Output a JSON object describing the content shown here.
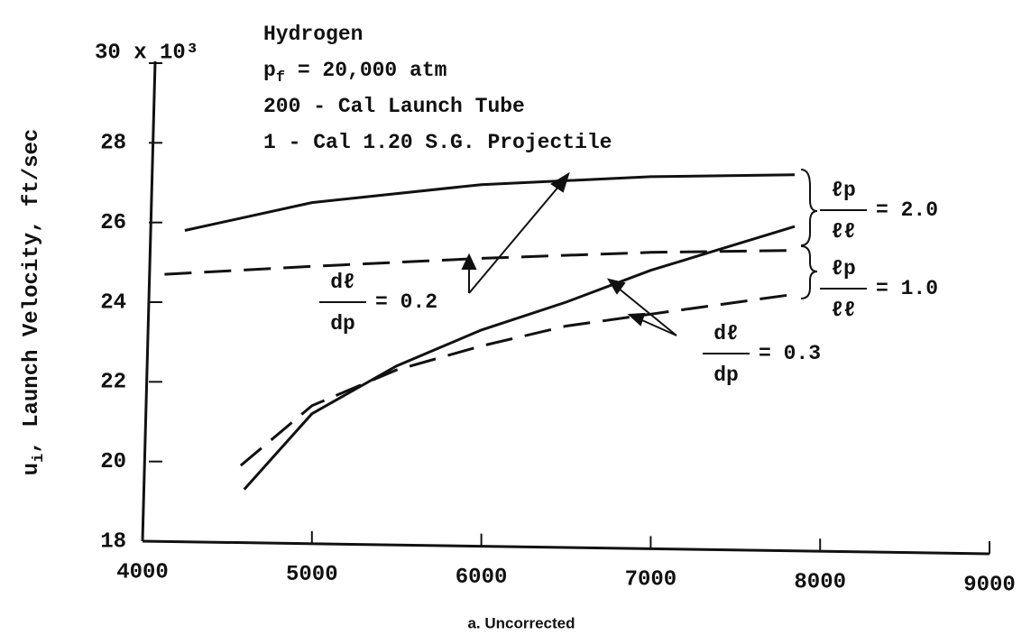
{
  "chart_data": {
    "type": "line",
    "caption": "a. Uncorrected",
    "y_label": {
      "text": "u",
      "sub": "i",
      "rest": ", Launch Velocity, ft/sec"
    },
    "notes": [
      {
        "text": "Hydrogen"
      },
      {
        "text": "p",
        "sub": "f",
        "rest": " = 20,000 atm"
      },
      {
        "text": "200 - Cal Launch Tube"
      },
      {
        "text": "1 - Cal 1.20 S.G. Projectile"
      }
    ],
    "annotations": [
      {
        "numerator": "ℓp",
        "denominator": "ℓℓ",
        "text": "= 2.0"
      },
      {
        "numerator": "ℓp",
        "denominator": "ℓℓ",
        "text": "= 1.0"
      },
      {
        "numerator": "dℓ",
        "denominator": "dp",
        "text": "= 0.2"
      },
      {
        "numerator": "dℓ",
        "denominator": "dp",
        "text": "= 0.3"
      }
    ],
    "xlim": [
      4000,
      9000
    ],
    "xticks": [
      4000,
      5000,
      6000,
      7000,
      8000,
      9000
    ],
    "ylim": [
      18,
      30
    ],
    "yticks": [
      18,
      20,
      22,
      24,
      26,
      28,
      {
        "value": 30,
        "label": "30 x 10³"
      }
    ],
    "series": [
      {
        "style": "solid",
        "color": "#111111",
        "x": [
          4250,
          5000,
          6000,
          7000,
          7850
        ],
        "values": [
          25.8,
          26.5,
          26.95,
          27.15,
          27.2
        ]
      },
      {
        "style": "dashed",
        "color": "#111111",
        "x": [
          4130,
          5000,
          6000,
          7000,
          7850
        ],
        "values": [
          24.7,
          24.9,
          25.1,
          25.25,
          25.3
        ]
      },
      {
        "style": "solid",
        "color": "#111111",
        "x": [
          4600,
          5000,
          5500,
          6000,
          6500,
          7000,
          7850
        ],
        "values": [
          19.3,
          21.2,
          22.4,
          23.3,
          24.0,
          24.8,
          25.9
        ]
      },
      {
        "style": "dashed",
        "color": "#111111",
        "x": [
          4580,
          5000,
          5500,
          6000,
          6500,
          7000,
          7850
        ],
        "values": [
          19.9,
          21.4,
          22.3,
          22.9,
          23.4,
          23.7,
          24.2
        ]
      }
    ]
  }
}
